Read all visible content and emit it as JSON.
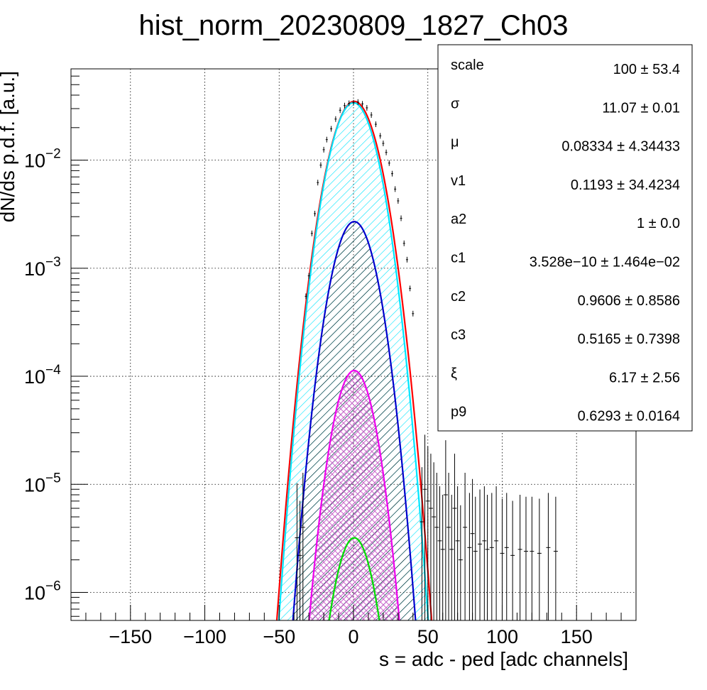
{
  "chart_data": {
    "type": "line",
    "title": "hist_norm_20230809_1827_Ch03",
    "xlabel": "s = adc - ped [adc channels]",
    "ylabel": "dN/ds p.d.f. [a.u.]",
    "x_range": [
      -190,
      190
    ],
    "y_range": [
      5.5e-07,
      0.07
    ],
    "y_scale": "log",
    "grid": true,
    "x_ticks": [
      -150,
      -100,
      -50,
      0,
      50,
      100,
      150
    ],
    "x_tick_labels": [
      "−150",
      "−100",
      "−50",
      "0",
      "50",
      "100",
      "150"
    ],
    "y_ticks": [
      {
        "value": 1e-06,
        "base": "10",
        "exp": "−6"
      },
      {
        "value": 1e-05,
        "base": "10",
        "exp": "−5"
      },
      {
        "value": 0.0001,
        "base": "10",
        "exp": "−4"
      },
      {
        "value": 0.001,
        "base": "10",
        "exp": "−3"
      },
      {
        "value": 0.01,
        "base": "10",
        "exp": "−2"
      }
    ],
    "series": [
      {
        "color": "#ff0000",
        "peak": 0.035,
        "mu": 0.5,
        "sigma": 11.07,
        "fill": "none"
      },
      {
        "color": "#00e5ff",
        "peak": 0.034,
        "mu": 0.0,
        "sigma": 10.7,
        "fill": "hatch-cyan"
      },
      {
        "color": "#0000cc",
        "peak": 0.0027,
        "mu": 0.5,
        "sigma": 10.0,
        "fill": "hatch-black"
      },
      {
        "color": "#ee00ee",
        "peak": 0.000113,
        "mu": 0.5,
        "sigma": 9.3,
        "fill": "crosshatch-magenta"
      },
      {
        "color": "#00dd00",
        "peak": 3.2e-06,
        "mu": 0.5,
        "sigma": 9.0,
        "fill": "none"
      }
    ],
    "data_points": {
      "core": [
        {
          "x": -32,
          "y": 0.00055
        },
        {
          "x": -30,
          "y": 0.00085
        },
        {
          "x": -28,
          "y": 0.0021
        },
        {
          "x": -26,
          "y": 0.0032
        },
        {
          "x": -24,
          "y": 0.0062
        },
        {
          "x": -22,
          "y": 0.009
        },
        {
          "x": -20,
          "y": 0.0125
        },
        {
          "x": -18,
          "y": 0.0155
        },
        {
          "x": -15,
          "y": 0.0195
        },
        {
          "x": -12,
          "y": 0.024
        },
        {
          "x": -9,
          "y": 0.029
        },
        {
          "x": -6,
          "y": 0.032
        },
        {
          "x": -3,
          "y": 0.0336
        },
        {
          "x": 0,
          "y": 0.034
        },
        {
          "x": 3,
          "y": 0.0345
        },
        {
          "x": 6,
          "y": 0.0332
        },
        {
          "x": 9,
          "y": 0.0305
        },
        {
          "x": 12,
          "y": 0.0262
        },
        {
          "x": 15,
          "y": 0.0215
        },
        {
          "x": 18,
          "y": 0.0168
        },
        {
          "x": 20,
          "y": 0.0143
        },
        {
          "x": 22,
          "y": 0.0118
        },
        {
          "x": 24,
          "y": 0.0094
        },
        {
          "x": 26,
          "y": 0.0075
        },
        {
          "x": 28,
          "y": 0.0054
        },
        {
          "x": 30,
          "y": 0.0042
        },
        {
          "x": 32,
          "y": 0.0029
        },
        {
          "x": 34,
          "y": 0.0017
        },
        {
          "x": 36,
          "y": 0.0012
        },
        {
          "x": 38,
          "y": 0.00065
        },
        {
          "x": 40,
          "y": 0.00038
        }
      ],
      "tail": [
        {
          "x": -38,
          "y": 3.2e-06
        },
        {
          "x": -36,
          "y": 2.2e-06
        },
        {
          "x": -34,
          "y": 4e-06
        },
        {
          "x": 46,
          "y": 4.5e-06
        },
        {
          "x": 48,
          "y": 9e-06
        },
        {
          "x": 50,
          "y": 7e-06
        },
        {
          "x": 52,
          "y": 6e-06
        },
        {
          "x": 54,
          "y": 5e-06
        },
        {
          "x": 56,
          "y": 4e-06
        },
        {
          "x": 58,
          "y": 3e-06
        },
        {
          "x": 60,
          "y": 2.5e-06
        },
        {
          "x": 62,
          "y": 8e-06
        },
        {
          "x": 64,
          "y": 4e-06
        },
        {
          "x": 66,
          "y": 2.5e-06
        },
        {
          "x": 68,
          "y": 6e-06
        },
        {
          "x": 70,
          "y": 3e-06
        },
        {
          "x": 72,
          "y": 2e-06
        },
        {
          "x": 75,
          "y": 4e-06
        },
        {
          "x": 78,
          "y": 2.6e-06
        },
        {
          "x": 80,
          "y": 3.5e-06
        },
        {
          "x": 82,
          "y": 2.4e-06
        },
        {
          "x": 85,
          "y": 2.8e-06
        },
        {
          "x": 88,
          "y": 3e-06
        },
        {
          "x": 90,
          "y": 2.5e-06
        },
        {
          "x": 93,
          "y": 2.6e-06
        },
        {
          "x": 96,
          "y": 3e-06
        },
        {
          "x": 100,
          "y": 2.3e-06
        },
        {
          "x": 103,
          "y": 2.6e-06
        },
        {
          "x": 107,
          "y": 2.2e-06
        },
        {
          "x": 112,
          "y": 2.5e-06
        },
        {
          "x": 116,
          "y": 2.4e-06
        },
        {
          "x": 120,
          "y": 2.4e-06
        },
        {
          "x": 125,
          "y": 2.3e-06
        },
        {
          "x": 131,
          "y": 2.6e-06
        },
        {
          "x": 136,
          "y": 2.4e-06
        }
      ]
    }
  },
  "stats_box": {
    "rows": [
      {
        "name": "scale",
        "value": "100 ± 53.4"
      },
      {
        "name": "σ",
        "value": "11.07 ± 0.01"
      },
      {
        "name": "μ",
        "value": "0.08334 ± 4.34433"
      },
      {
        "name": "v1",
        "value": "0.1193 ± 34.4234"
      },
      {
        "name": "a2",
        "value": "1 ± 0.0"
      },
      {
        "name": "c1",
        "value": "3.528e−10 ± 1.464e−02"
      },
      {
        "name": "c2",
        "value": "0.9606 ± 0.8586"
      },
      {
        "name": "c3",
        "value": "0.5165 ± 0.7398"
      },
      {
        "name": "ξ",
        "value": "6.17 ± 2.56"
      },
      {
        "name": "p9",
        "value": "0.6293 ± 0.0164"
      }
    ]
  }
}
